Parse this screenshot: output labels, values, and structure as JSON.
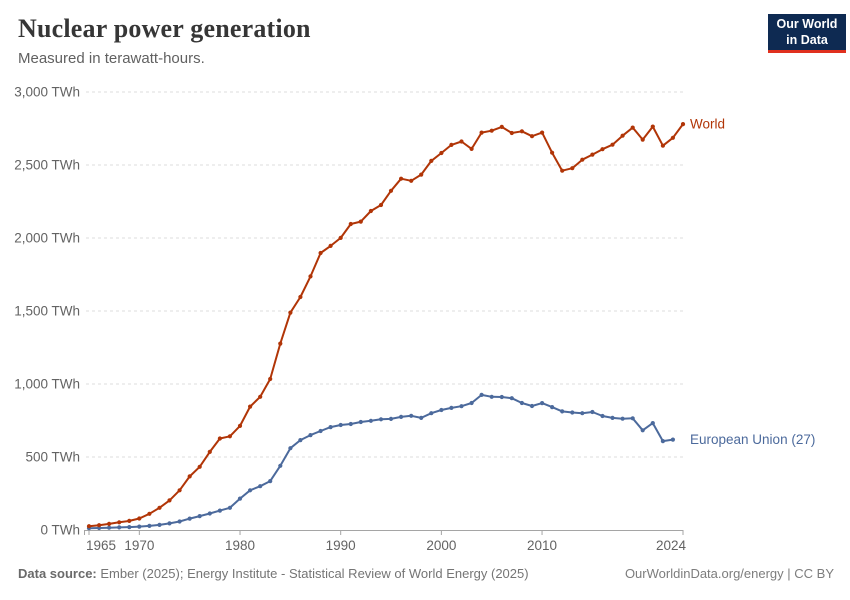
{
  "header": {
    "title": "Nuclear power generation",
    "subtitle": "Measured in terawatt-hours."
  },
  "logo": {
    "line1": "Our World",
    "line2": "in Data"
  },
  "footer": {
    "source_label": "Data source:",
    "source_text": " Ember (2025); Energy Institute - Statistical Review of World Energy (2025)",
    "right_text": "OurWorldinData.org/energy | CC BY"
  },
  "colors": {
    "world_line": "#b13507",
    "eu_line": "#4c6a9c",
    "gridline": "#dcdcdc",
    "axis": "#a5a5a5",
    "tick_label": "#636363",
    "logo_bg": "#0e2a52",
    "logo_accent": "#e0301e"
  },
  "chart_data": {
    "type": "line",
    "title": "Nuclear power generation",
    "unit": "TWh",
    "xlim": [
      1965,
      2024
    ],
    "ylim": [
      0,
      3000
    ],
    "grid": "horizontal-dashed",
    "legend_position": "end-of-line-labels",
    "x_ticks": [
      1965,
      1970,
      1980,
      1990,
      2000,
      2010,
      2024
    ],
    "x_tick_labels": [
      "1965",
      "1970",
      "1980",
      "1990",
      "2000",
      "2010",
      "2024"
    ],
    "y_ticks": [
      0,
      500,
      1000,
      1500,
      2000,
      2500,
      3000
    ],
    "y_tick_labels": [
      "0 TWh",
      "500 TWh",
      "1,000 TWh",
      "1,500 TWh",
      "2,000 TWh",
      "2,500 TWh",
      "3,000 TWh"
    ],
    "series": [
      {
        "name": "European Union (27)",
        "color": "#4c6a9c",
        "start_year": 1965,
        "values": [
          12,
          14,
          16,
          18,
          20,
          23,
          28,
          35,
          45,
          58,
          78,
          95,
          113,
          133,
          152,
          215,
          272,
          300,
          335,
          440,
          560,
          616,
          650,
          678,
          705,
          719,
          726,
          740,
          748,
          758,
          761,
          775,
          782,
          768,
          800,
          822,
          836,
          848,
          870,
          925,
          912,
          911,
          903,
          870,
          849,
          869,
          842,
          812,
          805,
          800,
          808,
          781,
          768,
          762,
          765,
          683,
          732,
          609,
          619
        ]
      },
      {
        "name": "World",
        "color": "#b13507",
        "start_year": 1965,
        "values": [
          26,
          33,
          42,
          53,
          62,
          79,
          111,
          152,
          203,
          272,
          367,
          433,
          535,
          627,
          642,
          713,
          845,
          912,
          1034,
          1277,
          1489,
          1596,
          1737,
          1897,
          1946,
          2001,
          2096,
          2112,
          2185,
          2226,
          2323,
          2406,
          2392,
          2434,
          2528,
          2582,
          2638,
          2661,
          2610,
          2722,
          2735,
          2761,
          2719,
          2731,
          2697,
          2722,
          2584,
          2461,
          2478,
          2536,
          2571,
          2608,
          2639,
          2701,
          2756,
          2674,
          2763,
          2632,
          2686,
          2780
        ]
      }
    ]
  }
}
